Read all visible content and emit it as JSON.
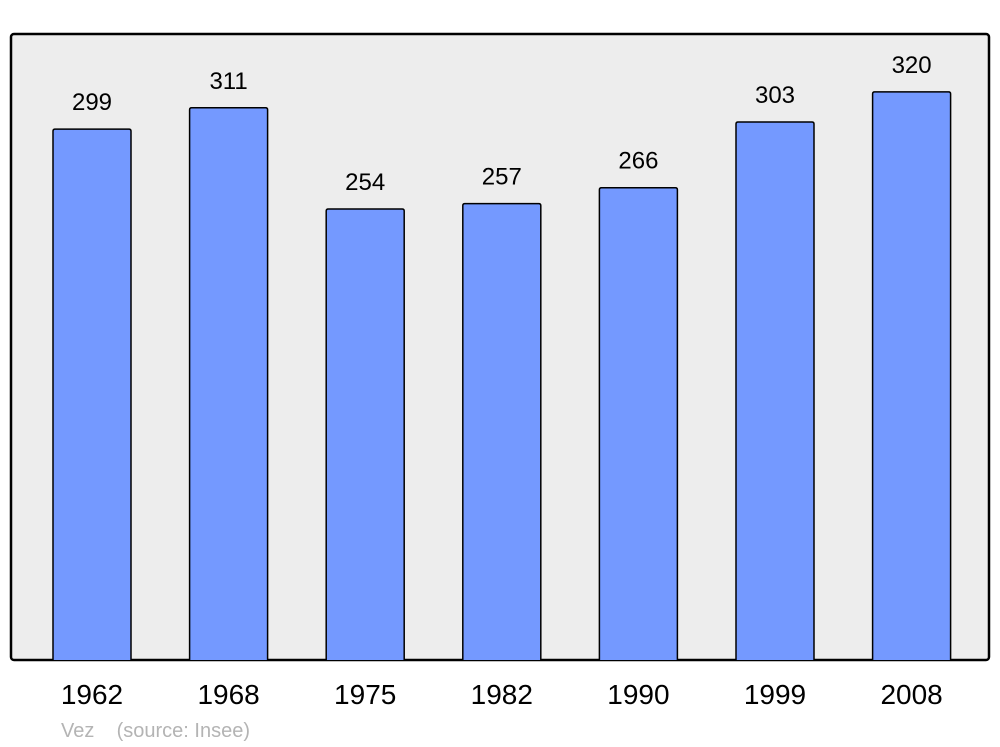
{
  "chart_data": {
    "type": "bar",
    "categories": [
      "1962",
      "1968",
      "1975",
      "1982",
      "1990",
      "1999",
      "2008"
    ],
    "values": [
      299,
      311,
      254,
      257,
      266,
      303,
      320
    ],
    "data_labels": [
      "299",
      "311",
      "254",
      "257",
      "266",
      "303",
      "320"
    ],
    "title": "",
    "xlabel": "",
    "ylabel": "",
    "ylim": [
      0,
      352
    ],
    "grid": false,
    "caption": "Vez    (source: Insee)",
    "colors": {
      "bar": "#7499ff",
      "plot_background": "#ededed",
      "caption": "#b4b4b4"
    }
  }
}
